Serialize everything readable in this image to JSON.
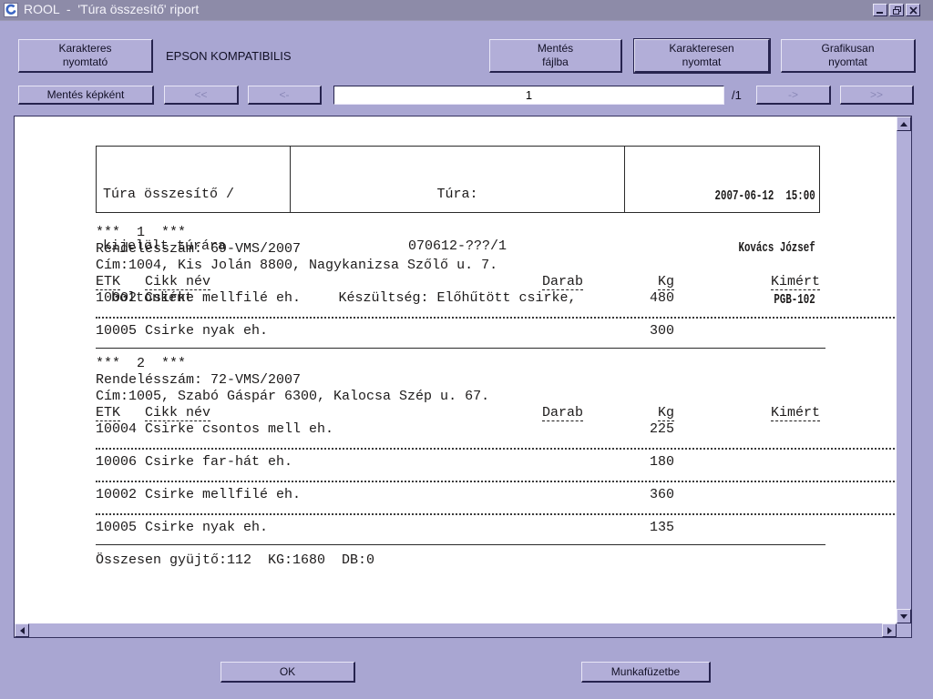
{
  "colors": {
    "window_bg": "#a9a6d2",
    "titlebar_bg": "#8d8ba8",
    "button_bg": "#b2aed8",
    "page_bg": "#ffffff",
    "ink": "#1c1a1a",
    "icon_blue": "#3c66c4"
  },
  "window": {
    "title": "ROOL  -  'Túra összesítő' riport",
    "controls": [
      "minimize-icon",
      "restore-icon",
      "close-icon"
    ]
  },
  "toolbar": {
    "char_printer": {
      "line1": "Karakteres",
      "line2": "nyomtató"
    },
    "printer_name": "EPSON KOMPATIBILIS",
    "save_file": {
      "line1": "Mentés",
      "line2": "fájlba"
    },
    "char_print": {
      "line1": "Karakteresen",
      "line2": "nyomtat"
    },
    "graphic_print": {
      "line1": "Grafikusan",
      "line2": "nyomtat"
    },
    "save_image": "Mentés képként",
    "nav_first": "<<",
    "nav_prev": "<-",
    "nav_next": "->",
    "nav_last": ">>",
    "page_value": "1",
    "page_total": "/1"
  },
  "report": {
    "header": {
      "left_lines": [
        "Túra összesítő /",
        "kijelölt túrára",
        " boltonként"
      ],
      "center_lines": [
        "Túra:",
        "070612-???/1",
        "Készültség: Előhűtött csirke,"
      ],
      "right_lines": [
        "2007-06-12  15:00",
        "Kovács József",
        "PGB-102"
      ]
    },
    "columns": [
      "ETK",
      "Cikk név",
      "Darab",
      "Kg",
      "Kimért"
    ],
    "sections": [
      {
        "index": "***  1  ***",
        "order": "Rendelésszám: 69-VMS/2007",
        "address": "Cím:1004, Kis Jolán 8800, Nagykanizsa Szőlő u. 7.",
        "rows": [
          {
            "etk": "10002",
            "name": "Csirke mellfilé eh.",
            "darab": "",
            "kg": "480",
            "kimert": ""
          },
          {
            "etk": "10005",
            "name": "Csirke nyak eh.",
            "darab": "",
            "kg": "300",
            "kimert": ""
          }
        ]
      },
      {
        "index": "***  2  ***",
        "order": "Rendelésszám: 72-VMS/2007",
        "address": "Cím:1005, Szabó Gáspár 6300, Kalocsa Szép u. 67.",
        "rows": [
          {
            "etk": "10004",
            "name": "Csirke csontos mell eh.",
            "darab": "",
            "kg": "225",
            "kimert": ""
          },
          {
            "etk": "10006",
            "name": "Csirke far-hát eh.",
            "darab": "",
            "kg": "180",
            "kimert": ""
          },
          {
            "etk": "10002",
            "name": "Csirke mellfilé eh.",
            "darab": "",
            "kg": "360",
            "kimert": ""
          },
          {
            "etk": "10005",
            "name": "Csirke nyak eh.",
            "darab": "",
            "kg": "135",
            "kimert": ""
          }
        ]
      }
    ],
    "summary": "Összesen gyüjtő:112  KG:1680  DB:0"
  },
  "footer": {
    "ok": "OK",
    "workbook": "Munkafüzetbe"
  }
}
